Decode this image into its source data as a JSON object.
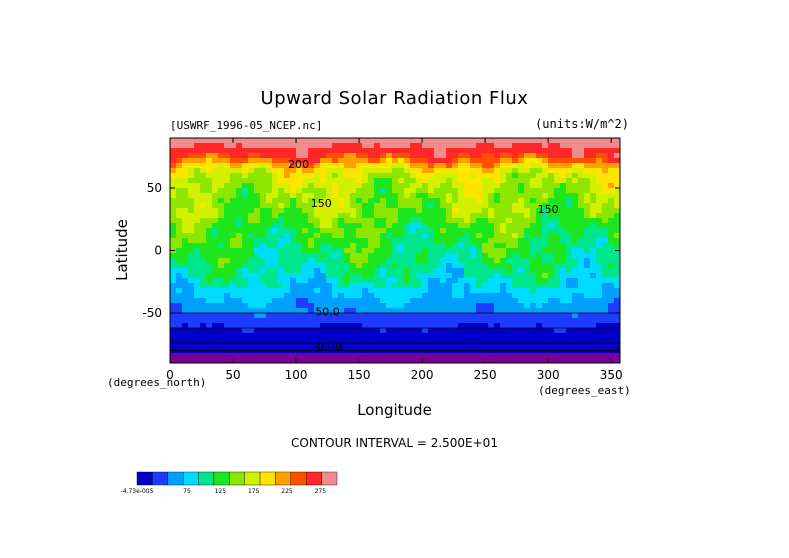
{
  "chart_data": {
    "type": "heatmap",
    "title": "Upward Solar Radiation Flux",
    "source_label": "[USWRF_1996-05_NCEP.nc]",
    "units_label": "(units:W/m^2)",
    "xlabel": "Longitude",
    "ylabel": "Latitude",
    "x_unit_label": "(degrees_east)",
    "y_unit_label": "(degrees_north)",
    "xlim": [
      0,
      357
    ],
    "ylim": [
      -90,
      90
    ],
    "x_ticks": [
      "0",
      "50",
      "100",
      "150",
      "200",
      "250",
      "300",
      "350"
    ],
    "x_tick_values": [
      0,
      50,
      100,
      150,
      200,
      250,
      300,
      350
    ],
    "y_ticks": [
      "50",
      "0",
      "-50"
    ],
    "y_tick_values": [
      50,
      0,
      -50
    ],
    "contour_interval_text": "CONTOUR INTERVAL = 2.500E+01",
    "contour_labels": [
      {
        "text": "200",
        "lon": 102,
        "lat": 66
      },
      {
        "text": "150",
        "lon": 120,
        "lat": 35
      },
      {
        "text": "150",
        "lon": 300,
        "lat": 30
      },
      {
        "text": "50.0",
        "lon": 125,
        "lat": -52
      },
      {
        "text": "-0.00",
        "lon": 125,
        "lat": -80
      }
    ],
    "colorbar": {
      "colors": [
        "#0000c8",
        "#1e3cff",
        "#00a0ff",
        "#00dcff",
        "#00e68c",
        "#1ee61e",
        "#8ce600",
        "#d2f000",
        "#ffe600",
        "#ffa000",
        "#ff5000",
        "#ff2828",
        "#f08c8c"
      ],
      "tick_labels": [
        "-4.73e-005",
        "75",
        "125",
        "175",
        "225",
        "275"
      ],
      "tick_values": [
        0,
        75,
        125,
        175,
        225,
        275
      ],
      "vmin": 0,
      "vmax": 300
    },
    "lat_band_values": [
      {
        "lat": 88,
        "value": 290
      },
      {
        "lat": 84,
        "value": 280
      },
      {
        "lat": 78,
        "value": 265
      },
      {
        "lat": 72,
        "value": 235
      },
      {
        "lat": 66,
        "value": 195
      },
      {
        "lat": 60,
        "value": 175
      },
      {
        "lat": 50,
        "value": 160
      },
      {
        "lat": 40,
        "value": 150
      },
      {
        "lat": 30,
        "value": 150
      },
      {
        "lat": 20,
        "value": 130
      },
      {
        "lat": 10,
        "value": 125
      },
      {
        "lat": 0,
        "value": 115
      },
      {
        "lat": -10,
        "value": 110
      },
      {
        "lat": -20,
        "value": 95
      },
      {
        "lat": -30,
        "value": 80
      },
      {
        "lat": -40,
        "value": 65
      },
      {
        "lat": -50,
        "value": 45
      },
      {
        "lat": -60,
        "value": 25
      },
      {
        "lat": -70,
        "value": 10
      },
      {
        "lat": -80,
        "value": 0
      },
      {
        "lat": -90,
        "value": 0
      }
    ]
  }
}
